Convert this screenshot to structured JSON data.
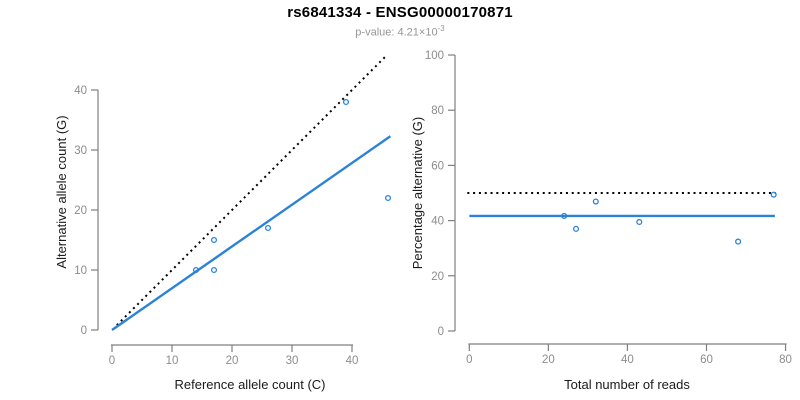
{
  "header": {
    "title": "rs6841334 - ENSG00000170871",
    "p_value_label": "p-value: 4.21×10",
    "p_value_exponent": "-3"
  },
  "colors": {
    "accent": "#2b82d9",
    "black": "#000000",
    "tick_label": "#8c8c8c",
    "axis": "#7f7f7f",
    "axis_title": "#1a1a1a",
    "subtitle": "#969696"
  },
  "chart_data": [
    {
      "type": "scatter",
      "title": "",
      "xlabel": "Reference allele count (C)",
      "ylabel": "Alternative allele count (G)",
      "xticks": [
        0,
        10,
        20,
        30,
        40
      ],
      "yticks": [
        0,
        10,
        20,
        30,
        40
      ],
      "xlim": [
        0,
        46.5
      ],
      "ylim": [
        0,
        46.5
      ],
      "grid": false,
      "legend": null,
      "points": [
        [
          14,
          10
        ],
        [
          17,
          10
        ],
        [
          17,
          15
        ],
        [
          26,
          17
        ],
        [
          39,
          38
        ],
        [
          46,
          22
        ]
      ],
      "lines": [
        {
          "name": "identity-line",
          "style": "dotted",
          "color": "black",
          "from": [
            0.8,
            0.8
          ],
          "to": [
            45.7,
            45.7
          ]
        },
        {
          "name": "fit-line",
          "style": "solid",
          "color": "accent",
          "from": [
            0,
            0
          ],
          "to": [
            46.4,
            32.3
          ]
        }
      ]
    },
    {
      "type": "scatter",
      "title": "",
      "xlabel": "Total number of reads",
      "ylabel": "Percentage alternative (G)",
      "xticks": [
        0,
        20,
        40,
        60,
        80
      ],
      "yticks": [
        0,
        20,
        40,
        60,
        80,
        100
      ],
      "xlim": [
        0,
        80
      ],
      "ylim": [
        0,
        100
      ],
      "grid": false,
      "legend": null,
      "points": [
        [
          24,
          41.7
        ],
        [
          27,
          37
        ],
        [
          32,
          46.9
        ],
        [
          43,
          39.5
        ],
        [
          68,
          32.4
        ],
        [
          77,
          49.4
        ]
      ],
      "lines": [
        {
          "name": "expected-50-line",
          "style": "dotted",
          "color": "black",
          "from": [
            -0.5,
            50
          ],
          "to": [
            77.5,
            50
          ]
        },
        {
          "name": "mean-percentage-line",
          "style": "solid",
          "color": "accent",
          "from": [
            0,
            41.7
          ],
          "to": [
            77.3,
            41.7
          ]
        }
      ]
    }
  ]
}
